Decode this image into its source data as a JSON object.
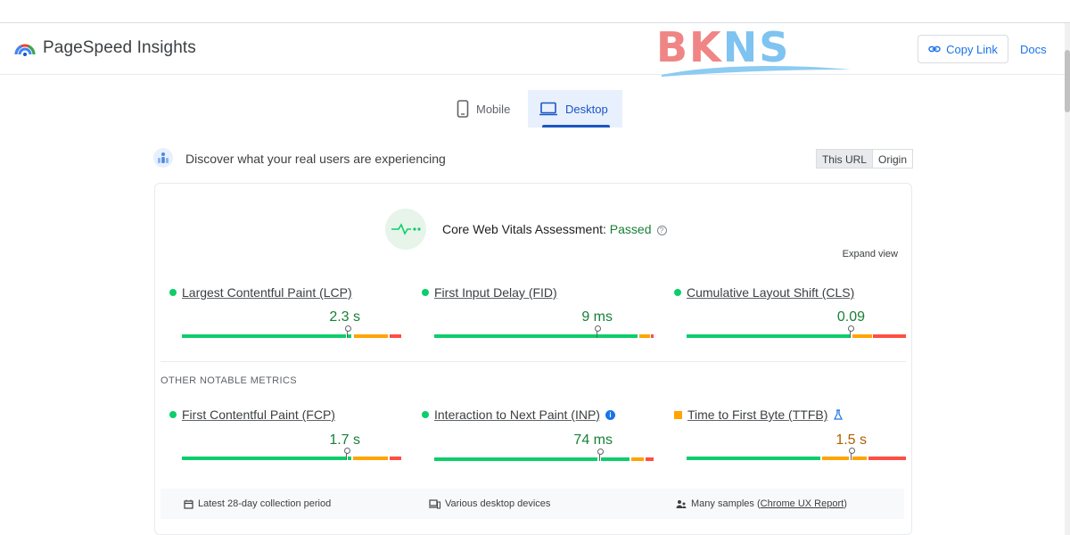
{
  "header": {
    "app_name": "PageSpeed Insights",
    "copy_link_label": "Copy Link",
    "docs_label": "Docs",
    "watermark": "BKNS"
  },
  "tabs": [
    {
      "label": "Mobile",
      "selected": false
    },
    {
      "label": "Desktop",
      "selected": true
    }
  ],
  "field": {
    "heading": "Discover what your real users are experiencing",
    "toggle": {
      "this_url": "This URL",
      "origin": "Origin",
      "selected": "This URL"
    }
  },
  "assessment": {
    "label": "Core Web Vitals Assessment:",
    "status": "Passed",
    "expand_label": "Expand view"
  },
  "core_metrics": [
    {
      "label": "Largest Contentful Paint (LCP)",
      "value": "2.3 s",
      "rating": "good"
    },
    {
      "label": "First Input Delay (FID)",
      "value": "9 ms",
      "rating": "good"
    },
    {
      "label": "Cumulative Layout Shift (CLS)",
      "value": "0.09",
      "rating": "good"
    }
  ],
  "other": {
    "title": "OTHER NOTABLE METRICS",
    "metrics": [
      {
        "label": "First Contentful Paint (FCP)",
        "value": "1.7 s",
        "rating": "good"
      },
      {
        "label": "Interaction to Next Paint (INP)",
        "value": "74 ms",
        "rating": "good"
      },
      {
        "label": "Time to First Byte (TTFB)",
        "value": "1.5 s",
        "rating": "needs-improvement"
      }
    ]
  },
  "footer": {
    "period": "Latest 28-day collection period",
    "devices": "Various desktop devices",
    "samples_prefix": "Many samples (",
    "samples_link": "Chrome UX Report",
    "samples_suffix": ")"
  },
  "colors": {
    "good": "#0cce6b",
    "average": "#ffa400",
    "poor": "#ff4e42",
    "accent": "#1a73e8"
  }
}
